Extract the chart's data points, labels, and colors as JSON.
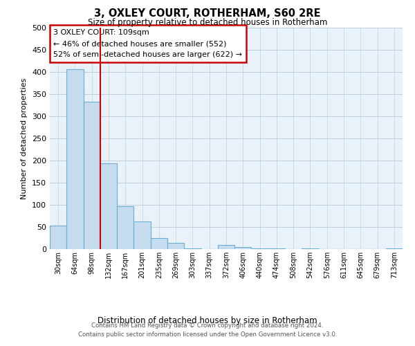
{
  "title": "3, OXLEY COURT, ROTHERHAM, S60 2RE",
  "subtitle": "Size of property relative to detached houses in Rotherham",
  "xlabel": "Distribution of detached houses by size in Rotherham",
  "ylabel": "Number of detached properties",
  "bar_labels": [
    "30sqm",
    "64sqm",
    "98sqm",
    "132sqm",
    "167sqm",
    "201sqm",
    "235sqm",
    "269sqm",
    "303sqm",
    "337sqm",
    "372sqm",
    "406sqm",
    "440sqm",
    "474sqm",
    "508sqm",
    "542sqm",
    "576sqm",
    "611sqm",
    "645sqm",
    "679sqm",
    "713sqm"
  ],
  "bar_values": [
    53,
    407,
    333,
    193,
    97,
    63,
    25,
    14,
    2,
    0,
    10,
    5,
    2,
    2,
    0,
    2,
    0,
    0,
    0,
    0,
    2
  ],
  "bar_color": "#c5dcee",
  "bar_edge_color": "#6aaed6",
  "vline_color": "#cc0000",
  "vline_pos": 2.5,
  "ylim": [
    0,
    500
  ],
  "yticks": [
    0,
    50,
    100,
    150,
    200,
    250,
    300,
    350,
    400,
    450,
    500
  ],
  "annotation_line1": "3 OXLEY COURT: 109sqm",
  "annotation_line2": "← 46% of detached houses are smaller (552)",
  "annotation_line3": "52% of semi-detached houses are larger (622) →",
  "footer_line1": "Contains HM Land Registry data © Crown copyright and database right 2024.",
  "footer_line2": "Contains public sector information licensed under the Open Government Licence v3.0.",
  "background_color": "#ffffff",
  "plot_bg_color": "#eaf2f9",
  "grid_color": "#c0d0e0",
  "ann_box_color": "#cc0000"
}
